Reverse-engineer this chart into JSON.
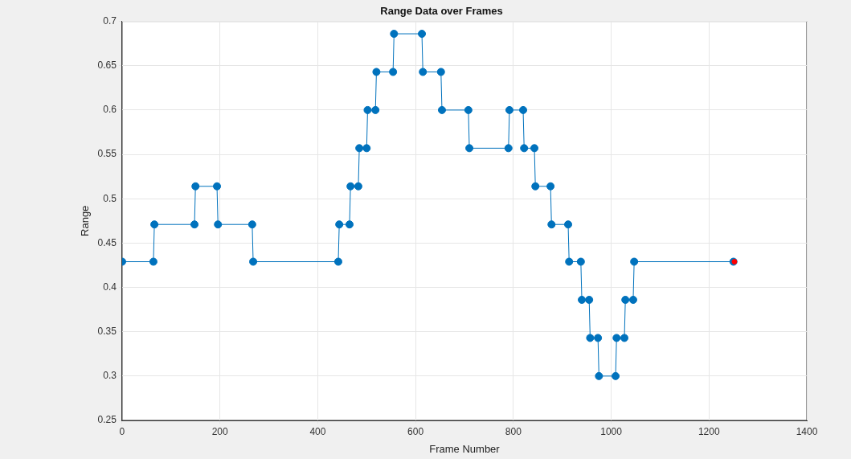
{
  "chart_data": {
    "type": "line",
    "title": "Range Data over Frames",
    "xlabel": "Frame Number",
    "ylabel": "Range",
    "series": [
      {
        "color": "#0072bd",
        "x": [
          0,
          64,
          66,
          148,
          150,
          194,
          196,
          266,
          268,
          442,
          444,
          465,
          467,
          483,
          485,
          500,
          502,
          518,
          520,
          554,
          556,
          613,
          615,
          652,
          654,
          708,
          710,
          790,
          792,
          820,
          822,
          843,
          845,
          876,
          878,
          912,
          914,
          938,
          940,
          955,
          957,
          973,
          975,
          1009,
          1011,
          1027,
          1029,
          1045,
          1047,
          1250
        ],
        "values": [
          0.429,
          0.429,
          0.471,
          0.471,
          0.514,
          0.514,
          0.471,
          0.471,
          0.429,
          0.429,
          0.471,
          0.471,
          0.514,
          0.514,
          0.557,
          0.557,
          0.6,
          0.6,
          0.643,
          0.643,
          0.686,
          0.686,
          0.643,
          0.643,
          0.6,
          0.6,
          0.557,
          0.557,
          0.6,
          0.6,
          0.557,
          0.557,
          0.514,
          0.514,
          0.471,
          0.471,
          0.429,
          0.429,
          0.386,
          0.386,
          0.343,
          0.343,
          0.3,
          0.3,
          0.343,
          0.343,
          0.386,
          0.386,
          0.429,
          0.429
        ]
      },
      {
        "type": "scatter",
        "color": "#ff0000",
        "x": [
          1252
        ],
        "values": [
          0.429
        ]
      }
    ],
    "xlim": [
      0,
      1400
    ],
    "xticks": [
      0,
      200,
      400,
      600,
      800,
      1000,
      1200,
      1400
    ],
    "ylim": [
      0.25,
      0.7
    ],
    "yticks": [
      0.25,
      0.3,
      0.35,
      0.4,
      0.45,
      0.5,
      0.55,
      0.6,
      0.65,
      0.7
    ],
    "grid": true,
    "marker": "circle",
    "line_style": "solid"
  }
}
